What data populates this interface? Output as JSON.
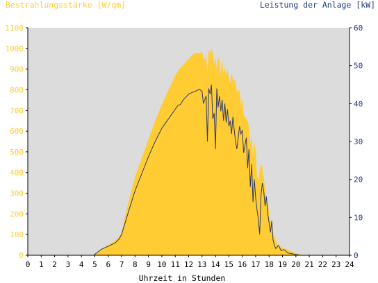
{
  "chart_data": {
    "type": "area",
    "left_axis_title": "Bestrahlungsstärke [W/qm]",
    "right_axis_title": "Leistung der Anlage [kW]",
    "xlabel": "Uhrzeit in Stunden",
    "xlim": [
      0,
      24
    ],
    "x_ticks": [
      "0",
      "1",
      "2",
      "3",
      "4",
      "5",
      "6",
      "7",
      "8",
      "9",
      "10",
      "11",
      "12",
      "13",
      "14",
      "15",
      "16",
      "17",
      "18",
      "19",
      "20",
      "21",
      "22",
      "23",
      "24"
    ],
    "y_left_lim": [
      0,
      1100
    ],
    "y_left_ticks": [
      "0",
      "100",
      "200",
      "300",
      "400",
      "500",
      "600",
      "700",
      "800",
      "900",
      "1000",
      "1100"
    ],
    "y_right_lim": [
      0,
      60
    ],
    "y_right_ticks": [
      "0",
      "10",
      "20",
      "30",
      "40",
      "50",
      "60"
    ],
    "grid": false,
    "colors": {
      "plot_background": "#dcdcdc",
      "irradiance_fill": "#ffcc33",
      "power_line": "#2b3a6b",
      "left_axis_text": "#ffcc33",
      "right_axis_text": "#1f3a7a"
    },
    "series": [
      {
        "axis": "left",
        "style": "filled-area",
        "x": [
          0,
          4.9,
          5.2,
          5.5,
          6.0,
          6.5,
          6.8,
          7.0,
          7.3,
          7.6,
          8.0,
          8.5,
          9.0,
          9.5,
          10.0,
          10.5,
          11.0,
          11.3,
          11.6,
          12.0,
          12.3,
          12.6,
          12.8,
          13.0,
          13.1,
          13.2,
          13.3,
          13.4,
          13.5,
          13.6,
          13.7,
          13.8,
          13.9,
          14.0,
          14.1,
          14.2,
          14.3,
          14.4,
          14.5,
          14.6,
          14.7,
          14.8,
          14.9,
          15.0,
          15.1,
          15.2,
          15.3,
          15.5,
          15.6,
          15.8,
          15.9,
          16.0,
          16.1,
          16.3,
          16.4,
          16.5,
          16.6,
          16.7,
          16.8,
          16.9,
          17.0,
          17.1,
          17.2,
          17.3,
          17.4,
          17.5,
          17.6,
          17.7,
          17.8,
          17.9,
          18.0,
          18.1,
          18.2,
          18.3,
          18.4,
          18.5,
          18.6,
          18.8,
          19.0,
          19.3,
          19.6,
          20.0,
          20.3,
          20.5,
          24
        ],
        "values": [
          0,
          0,
          15,
          30,
          50,
          70,
          90,
          110,
          200,
          280,
          380,
          470,
          560,
          650,
          730,
          800,
          870,
          900,
          920,
          950,
          970,
          980,
          975,
          985,
          960,
          940,
          970,
          880,
          995,
          975,
          1000,
          980,
          920,
          960,
          900,
          960,
          940,
          870,
          950,
          880,
          910,
          870,
          900,
          860,
          830,
          880,
          850,
          840,
          790,
          800,
          720,
          760,
          680,
          660,
          650,
          620,
          540,
          580,
          470,
          550,
          500,
          380,
          360,
          410,
          440,
          420,
          370,
          330,
          280,
          260,
          200,
          160,
          180,
          110,
          90,
          70,
          55,
          45,
          35,
          30,
          20,
          10,
          5,
          0,
          0
        ]
      },
      {
        "axis": "right",
        "style": "line",
        "x": [
          0,
          4.9,
          5.2,
          5.5,
          6.0,
          6.5,
          6.8,
          7.0,
          7.3,
          7.6,
          8.0,
          8.5,
          9.0,
          9.5,
          10.0,
          10.5,
          11.0,
          11.2,
          11.4,
          11.6,
          12.0,
          12.3,
          12.6,
          12.8,
          13.0,
          13.1,
          13.2,
          13.3,
          13.4,
          13.5,
          13.6,
          13.7,
          13.8,
          13.9,
          14.0,
          14.1,
          14.2,
          14.3,
          14.4,
          14.5,
          14.6,
          14.7,
          14.8,
          14.9,
          15.0,
          15.1,
          15.2,
          15.3,
          15.4,
          15.5,
          15.6,
          15.8,
          15.9,
          16.0,
          16.1,
          16.3,
          16.4,
          16.5,
          16.6,
          16.7,
          16.8,
          16.9,
          17.0,
          17.1,
          17.2,
          17.3,
          17.4,
          17.5,
          17.6,
          17.7,
          17.8,
          17.9,
          18.0,
          18.1,
          18.2,
          18.3,
          18.4,
          18.5,
          18.7,
          18.9,
          19.1,
          19.4,
          19.7,
          20.0,
          20.3,
          24
        ],
        "values": [
          0,
          0,
          0.8,
          1.6,
          2.4,
          3.2,
          4.2,
          5.5,
          9,
          12.5,
          17,
          21.5,
          26,
          30,
          33.5,
          36,
          38.5,
          39.5,
          39.8,
          41,
          42.5,
          43,
          43.4,
          43.8,
          43.2,
          40,
          41,
          42,
          30,
          44,
          42.5,
          45,
          36,
          37.5,
          28,
          44,
          39,
          42,
          38,
          41,
          35.5,
          40,
          35,
          38.5,
          34,
          35.5,
          32,
          36.5,
          33,
          30,
          28,
          34,
          32,
          33,
          27,
          31,
          23,
          28,
          18,
          24,
          14,
          20,
          15,
          12,
          9.5,
          5.5,
          16,
          19,
          17,
          13,
          15.5,
          11,
          8.5,
          6,
          9,
          4,
          2.5,
          1.8,
          2.6,
          1.2,
          1.5,
          0.6,
          0.4,
          0.2,
          0,
          0
        ]
      }
    ]
  }
}
